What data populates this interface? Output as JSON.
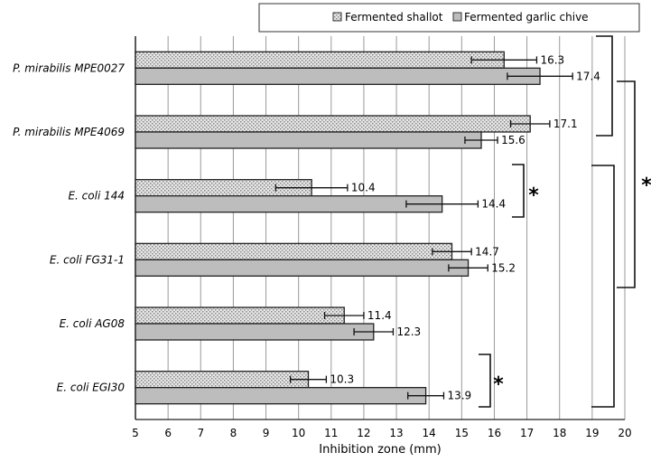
{
  "chart_data": {
    "type": "bar",
    "orientation": "horizontal",
    "xlabel": "Inhibition zone (mm)",
    "xlim": [
      5,
      20
    ],
    "xticks": [
      "5",
      "6",
      "7",
      "8",
      "9",
      "10",
      "11",
      "12",
      "13",
      "14",
      "15",
      "16",
      "17",
      "18",
      "19",
      "20"
    ],
    "grid": true,
    "legend_position": "top-right",
    "categories": [
      "P. mirabilis MPE0027",
      "P. mirabilis MPE4069",
      "E. coli 144",
      "E. coli FG31-1",
      "E. coli AG08",
      "E. coli EGI30"
    ],
    "series": [
      {
        "name": "Fermented shallot",
        "color": "#d8d8d8",
        "values": [
          16.3,
          17.1,
          10.4,
          14.7,
          11.4,
          10.3
        ],
        "errors": [
          1.0,
          0.6,
          1.1,
          0.6,
          0.6,
          0.55
        ],
        "labels": [
          "16.3",
          "17.1",
          "10.4",
          "14.7",
          "11.4",
          "10.3"
        ]
      },
      {
        "name": "Fermented garlic chive",
        "color": "#bdbdbd",
        "values": [
          17.4,
          15.6,
          14.4,
          15.2,
          12.3,
          13.9
        ],
        "errors": [
          1.0,
          0.5,
          1.1,
          0.6,
          0.6,
          0.55
        ],
        "labels": [
          "17.4",
          "15.6",
          "14.4",
          "15.2",
          "12.3",
          "13.9"
        ]
      }
    ],
    "annotations": [
      "*",
      "*",
      "*"
    ]
  }
}
